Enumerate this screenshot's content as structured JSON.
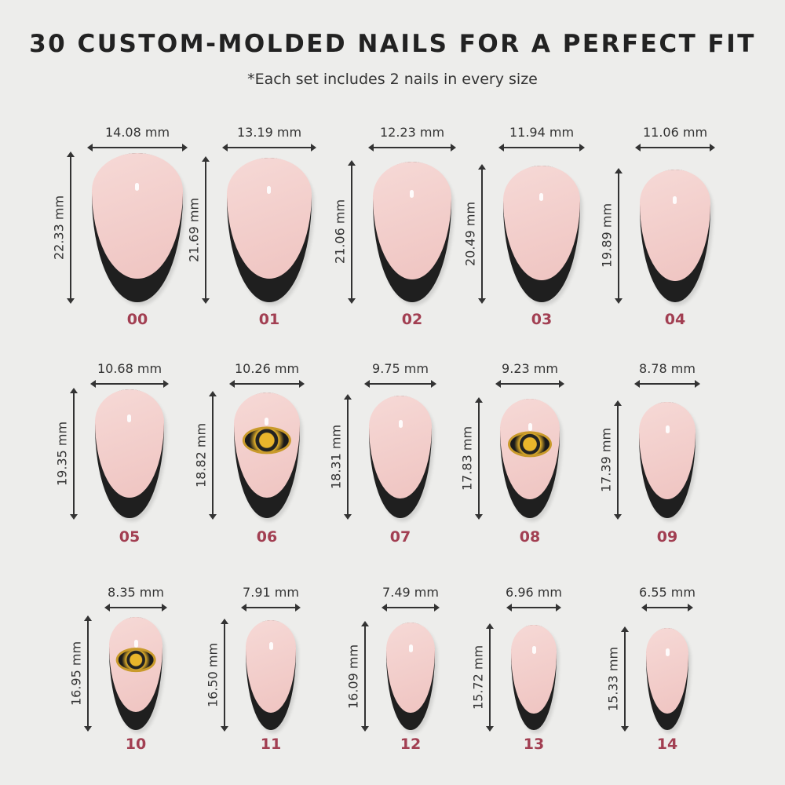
{
  "title": "30 CUSTOM-MOLDED NAILS FOR A PERFECT FIT",
  "subtitle": "*Each set includes 2 nails in every size",
  "colors": {
    "background": "#ededeb",
    "size_label": "#a23f52",
    "nail_pink": "#f2cdca",
    "nail_tip": "#1f1f1f"
  },
  "nails": [
    {
      "size": "00",
      "width": "14.08 mm",
      "length": "22.33 mm",
      "w_mm": 14.08,
      "l_mm": 22.33,
      "logo": false
    },
    {
      "size": "01",
      "width": "13.19 mm",
      "length": "21.69 mm",
      "w_mm": 13.19,
      "l_mm": 21.69,
      "logo": false
    },
    {
      "size": "02",
      "width": "12.23 mm",
      "length": "21.06 mm",
      "w_mm": 12.23,
      "l_mm": 21.06,
      "logo": false
    },
    {
      "size": "03",
      "width": "11.94 mm",
      "length": "20.49 mm",
      "w_mm": 11.94,
      "l_mm": 20.49,
      "logo": false
    },
    {
      "size": "04",
      "width": "11.06 mm",
      "length": "19.89 mm",
      "w_mm": 11.06,
      "l_mm": 19.89,
      "logo": false
    },
    {
      "size": "05",
      "width": "10.68 mm",
      "length": "19.35 mm",
      "w_mm": 10.68,
      "l_mm": 19.35,
      "logo": false
    },
    {
      "size": "06",
      "width": "10.26 mm",
      "length": "18.82 mm",
      "w_mm": 10.26,
      "l_mm": 18.82,
      "logo": true
    },
    {
      "size": "07",
      "width": "9.75 mm",
      "length": "18.31 mm",
      "w_mm": 9.75,
      "l_mm": 18.31,
      "logo": false
    },
    {
      "size": "08",
      "width": "9.23 mm",
      "length": "17.83 mm",
      "w_mm": 9.23,
      "l_mm": 17.83,
      "logo": true
    },
    {
      "size": "09",
      "width": "8.78 mm",
      "length": "17.39 mm",
      "w_mm": 8.78,
      "l_mm": 17.39,
      "logo": false
    },
    {
      "size": "10",
      "width": "8.35 mm",
      "length": "16.95 mm",
      "w_mm": 8.35,
      "l_mm": 16.95,
      "logo": true
    },
    {
      "size": "11",
      "width": "7.91 mm",
      "length": "16.50 mm",
      "w_mm": 7.91,
      "l_mm": 16.5,
      "logo": false
    },
    {
      "size": "12",
      "width": "7.49 mm",
      "length": "16.09 mm",
      "w_mm": 7.49,
      "l_mm": 16.09,
      "logo": false
    },
    {
      "size": "13",
      "width": "6.96 mm",
      "length": "15.72 mm",
      "w_mm": 6.96,
      "l_mm": 15.72,
      "logo": false
    },
    {
      "size": "14",
      "width": "6.55 mm",
      "length": "15.33 mm",
      "w_mm": 6.55,
      "l_mm": 15.33,
      "logo": false
    }
  ]
}
